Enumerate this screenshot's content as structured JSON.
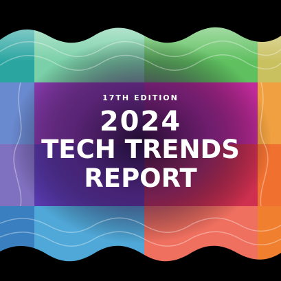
{
  "cover": {
    "edition": "17TH EDITION",
    "year": "2024",
    "title_line1": "TECH TRENDS",
    "title_line2": "REPORT"
  }
}
